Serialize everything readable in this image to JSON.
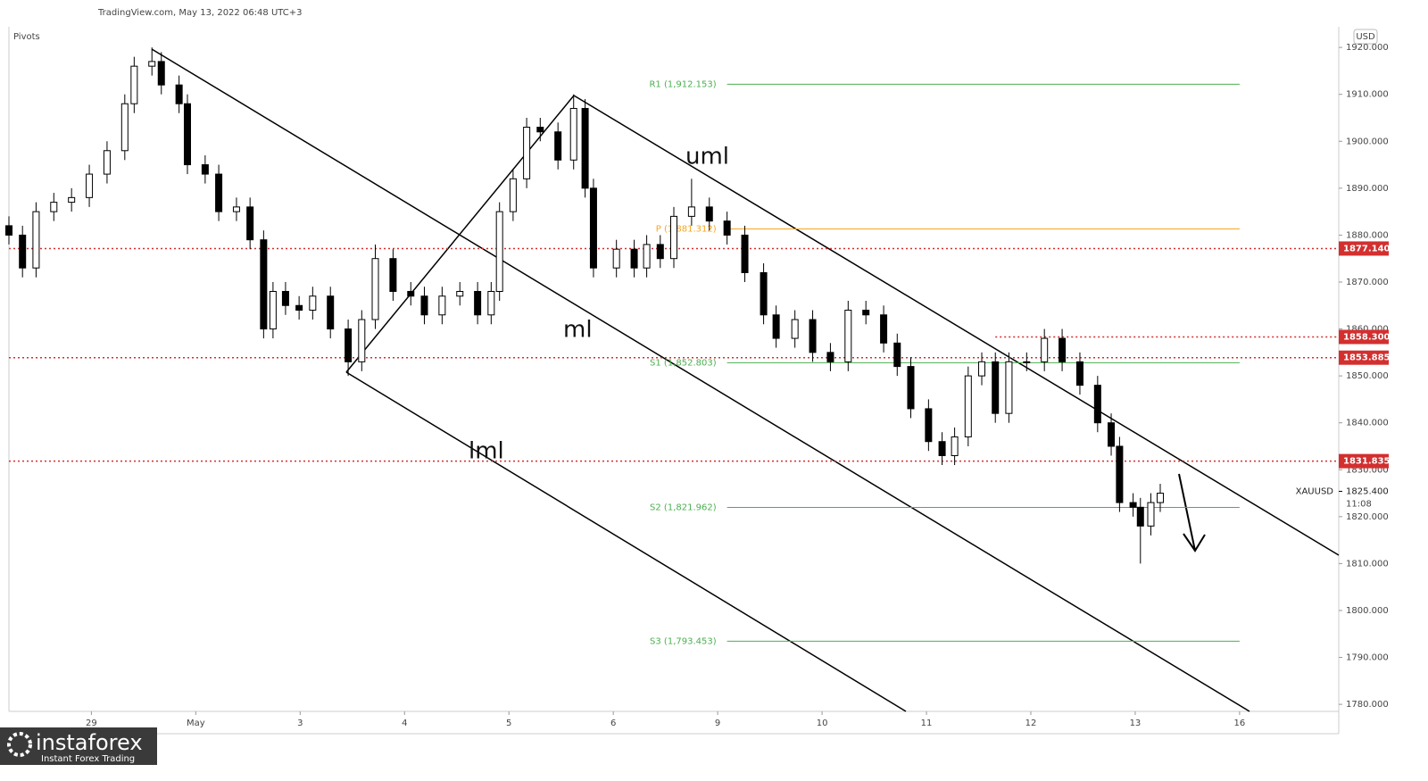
{
  "chart_data": {
    "type": "candlestick",
    "title": "TradingView.com, May 13, 2022 06:48 UTC+3",
    "indicator": "Pivots",
    "currency": "USD",
    "symbol": "XAUUSD",
    "last_price": {
      "value": 1825.4,
      "label": "1825.400"
    },
    "countdown": "11:08",
    "up_color": "#ffffff",
    "down_color": "#000000",
    "x": [
      -0.79,
      -0.66,
      -0.53,
      -0.36,
      -0.19,
      -0.02,
      0.15,
      0.32,
      0.41,
      0.58,
      0.67,
      0.84,
      0.92,
      1.09,
      1.22,
      1.39,
      1.52,
      1.65,
      1.74,
      1.86,
      1.99,
      2.12,
      2.29,
      2.46,
      2.59,
      2.72,
      2.89,
      3.06,
      3.19,
      3.36,
      3.53,
      3.7,
      3.83,
      3.91,
      4.04,
      4.17,
      4.3,
      4.47,
      4.62,
      4.73,
      4.81,
      5.03,
      5.2,
      5.32,
      5.45,
      5.58,
      5.75,
      5.92,
      6.09,
      6.26,
      6.44,
      6.56,
      6.74,
      6.91,
      7.08,
      7.25,
      7.42,
      7.59,
      7.72,
      7.85,
      8.02,
      8.15,
      8.27,
      8.4,
      8.53,
      8.66,
      8.79,
      8.96,
      9.13,
      9.3,
      9.47,
      9.64,
      9.77,
      9.85,
      9.98,
      10.05,
      10.15,
      10.24
    ],
    "open": [
      1882,
      1880,
      1873,
      1885,
      1887,
      1888,
      1893,
      1898,
      1908,
      1916,
      1917,
      1912,
      1908,
      1895,
      1893,
      1885,
      1886,
      1879,
      1860,
      1868,
      1865,
      1864,
      1867,
      1860,
      1853,
      1862,
      1875,
      1868,
      1867,
      1863,
      1867,
      1868,
      1863,
      1868,
      1885,
      1892,
      1903,
      1902,
      1896,
      1907,
      1890,
      1873,
      1877,
      1873,
      1878,
      1875,
      1884,
      1886,
      1883,
      1880,
      1872,
      1863,
      1858,
      1862,
      1855,
      1853,
      1864,
      1863,
      1857,
      1852,
      1843,
      1836,
      1833,
      1837,
      1850,
      1853,
      1842,
      1853,
      1853,
      1858,
      1853,
      1848,
      1840,
      1835,
      1823,
      1822,
      1818,
      1823
    ],
    "high": [
      1884,
      1882,
      1887,
      1889,
      1890,
      1895,
      1900,
      1910,
      1918,
      1920,
      1919,
      1914,
      1910,
      1897,
      1895,
      1888,
      1888,
      1881,
      1870,
      1870,
      1867,
      1869,
      1869,
      1862,
      1864,
      1878,
      1877,
      1870,
      1869,
      1869,
      1870,
      1870,
      1870,
      1887,
      1894,
      1905,
      1905,
      1904,
      1910,
      1909,
      1892,
      1879,
      1879,
      1880,
      1880,
      1886,
      1892,
      1888,
      1885,
      1882,
      1874,
      1865,
      1864,
      1864,
      1857,
      1866,
      1866,
      1865,
      1859,
      1854,
      1845,
      1838,
      1839,
      1852,
      1855,
      1855,
      1855,
      1855,
      1860,
      1860,
      1855,
      1850,
      1842,
      1837,
      1825,
      1824,
      1825,
      1827
    ],
    "low": [
      1878,
      1871,
      1871,
      1883,
      1885,
      1886,
      1891,
      1896,
      1906,
      1914,
      1910,
      1906,
      1893,
      1891,
      1883,
      1883,
      1877,
      1858,
      1858,
      1863,
      1862,
      1862,
      1858,
      1850,
      1851,
      1860,
      1866,
      1865,
      1861,
      1861,
      1865,
      1861,
      1861,
      1866,
      1883,
      1890,
      1900,
      1894,
      1894,
      1888,
      1871,
      1871,
      1871,
      1871,
      1873,
      1873,
      1882,
      1881,
      1878,
      1870,
      1861,
      1856,
      1856,
      1853,
      1851,
      1851,
      1861,
      1855,
      1850,
      1841,
      1834,
      1831,
      1831,
      1835,
      1848,
      1840,
      1840,
      1851,
      1851,
      1851,
      1846,
      1838,
      1833,
      1821,
      1820,
      1810,
      1816,
      1821
    ],
    "close": [
      1880,
      1873,
      1885,
      1887,
      1888,
      1893,
      1898,
      1908,
      1916,
      1917,
      1912,
      1908,
      1895,
      1893,
      1885,
      1886,
      1879,
      1860,
      1868,
      1865,
      1864,
      1867,
      1860,
      1853,
      1862,
      1875,
      1868,
      1867,
      1863,
      1867,
      1868,
      1863,
      1868,
      1885,
      1892,
      1903,
      1902,
      1896,
      1907,
      1890,
      1873,
      1877,
      1873,
      1878,
      1875,
      1884,
      1886,
      1883,
      1880,
      1872,
      1863,
      1858,
      1862,
      1855,
      1853,
      1864,
      1863,
      1857,
      1852,
      1843,
      1836,
      1833,
      1837,
      1850,
      1853,
      1842,
      1853,
      1853,
      1858,
      1853,
      1848,
      1840,
      1835,
      1823,
      1822,
      1818,
      1823,
      1825
    ],
    "xlim": [
      -0.79,
      11.95
    ],
    "xticks": [
      {
        "value": 0,
        "label": "29"
      },
      {
        "value": 1,
        "label": "May"
      },
      {
        "value": 2,
        "label": "3"
      },
      {
        "value": 3,
        "label": "4"
      },
      {
        "value": 4,
        "label": "5"
      },
      {
        "value": 5,
        "label": "6"
      },
      {
        "value": 6,
        "label": "9"
      },
      {
        "value": 7,
        "label": "10"
      },
      {
        "value": 8,
        "label": "11"
      },
      {
        "value": 9,
        "label": "12"
      },
      {
        "value": 10,
        "label": "13"
      },
      {
        "value": 11,
        "label": "16"
      }
    ],
    "ylim": [
      1778.5,
      1924.4
    ],
    "yticks": [
      {
        "value": 1780,
        "label": "1780.000"
      },
      {
        "value": 1790,
        "label": "1790.000"
      },
      {
        "value": 1800,
        "label": "1800.000"
      },
      {
        "value": 1810,
        "label": "1810.000"
      },
      {
        "value": 1820,
        "label": "1820.000"
      },
      {
        "value": 1830,
        "label": "1830.000"
      },
      {
        "value": 1840,
        "label": "1840.000"
      },
      {
        "value": 1850,
        "label": "1850.000"
      },
      {
        "value": 1860,
        "label": "1860.000"
      },
      {
        "value": 1870,
        "label": "1870.000"
      },
      {
        "value": 1880,
        "label": "1880.000"
      },
      {
        "value": 1890,
        "label": "1890.000"
      },
      {
        "value": 1900,
        "label": "1900.000"
      },
      {
        "value": 1910,
        "label": "1910.000"
      },
      {
        "value": 1920,
        "label": "1920.000"
      }
    ],
    "levels": [
      {
        "value": 1877.14,
        "label": "1877.140",
        "color": "#d32f2f"
      },
      {
        "value": 1858.3,
        "label": "1858.300",
        "color": "#d32f2f",
        "start": 8.66
      },
      {
        "value": 1853.885,
        "label": "1853.885",
        "color": "#d32f2f"
      },
      {
        "value": 1831.835,
        "label": "1831.835",
        "color": "#d32f2f"
      }
    ],
    "pivots": [
      {
        "value": 1912.153,
        "label": "R1 (1,912.153)",
        "color": "#4caf50",
        "start": 6.09,
        "end": 11
      },
      {
        "value": 1881.312,
        "label": "P (1,881.312)",
        "color": "#f5a623",
        "start": 6.09,
        "end": 11
      },
      {
        "value": 1852.803,
        "label": "S1 (1,852.803)",
        "color": "#4caf50",
        "start": 6.09,
        "end": 11
      },
      {
        "value": 1821.962,
        "label": "S2 (1,821.962)",
        "color": "#4caf50",
        "start": 6.09,
        "end": 11
      },
      {
        "value": 1793.453,
        "label": "S3 (1,793.453)",
        "color": "#4caf50",
        "start": 6.09,
        "end": 11
      }
    ],
    "annotations": [
      "uml",
      "ml",
      "lml"
    ],
    "watermark": {
      "brand": "instaforex",
      "tagline": "Instant Forex Trading"
    }
  }
}
